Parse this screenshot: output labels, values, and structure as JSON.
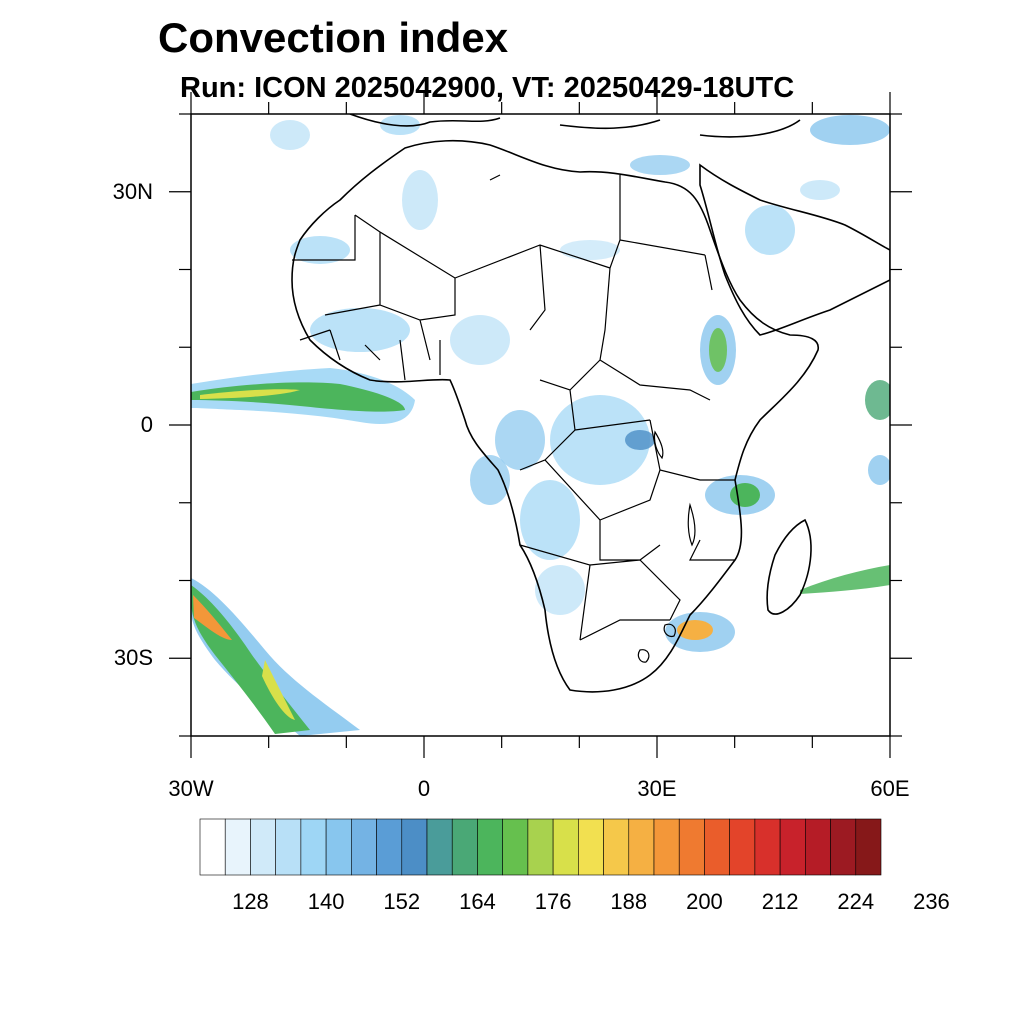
{
  "title": "Convection index",
  "subtitle": "Run: ICON 2025042900,  VT: 20250429-18UTC",
  "map": {
    "lat_ticks": [
      "30N",
      "0",
      "30S"
    ],
    "lon_ticks": [
      "30W",
      "0",
      "30E",
      "60E"
    ],
    "lon_range": [
      -30,
      60
    ],
    "lat_range": [
      -40,
      40
    ]
  },
  "colorbar": {
    "labels": [
      "128",
      "140",
      "152",
      "164",
      "176",
      "188",
      "200",
      "212",
      "224",
      "236"
    ],
    "colors": [
      "#ffffff",
      "#e8f4fc",
      "#d0eaf9",
      "#b8e0f7",
      "#9ed6f5",
      "#88c6ee",
      "#74b3e4",
      "#5a9dd6",
      "#4c8ec6",
      "#4a9c9a",
      "#4aa876",
      "#4cb55c",
      "#66c04e",
      "#a8d24e",
      "#d8e04a",
      "#f2e050",
      "#f5c84a",
      "#f5b043",
      "#f39739",
      "#ef7a30",
      "#ea5d2b",
      "#e3442a",
      "#d8302b",
      "#c8222b",
      "#b51c26",
      "#9c1a22",
      "#861819"
    ]
  }
}
